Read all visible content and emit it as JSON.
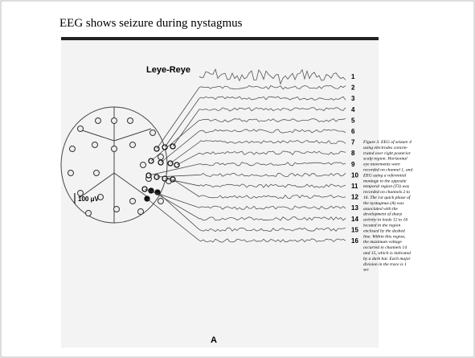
{
  "slide": {
    "title": "EEG shows seizure during nystagmus",
    "figure": {
      "trace_label": "Leye-Reye",
      "channels": [
        "1",
        "2",
        "3",
        "4",
        "5",
        "6",
        "7",
        "8",
        "9",
        "10",
        "11",
        "12",
        "13",
        "14",
        "15",
        "16"
      ],
      "scale_label": "100 μV",
      "panel_label": "A",
      "caption": [
        "Figure 3. EEG of seizure 4",
        "using electrodes concen-",
        "trated over right posterior",
        "scalp region. Horizontal",
        "eye movements were",
        "recorded on channel 1, and",
        "EEG using a referential",
        "montage to the opposite",
        "temporal region (T3) was",
        "recorded on channels 2 to",
        "16. The 1st quick phase of",
        "the nystagmus (A) was",
        "associated with the",
        "development of sharp",
        "activity in leads 12 to 16",
        "located in the region",
        "enclosed by the dashed",
        "line. Within this region,",
        "the maximum voltage",
        "occurred in channels 14",
        "and 15, which is indicated",
        "by a dark bar. Each major",
        "division in the trace is 1",
        "sec"
      ]
    }
  }
}
